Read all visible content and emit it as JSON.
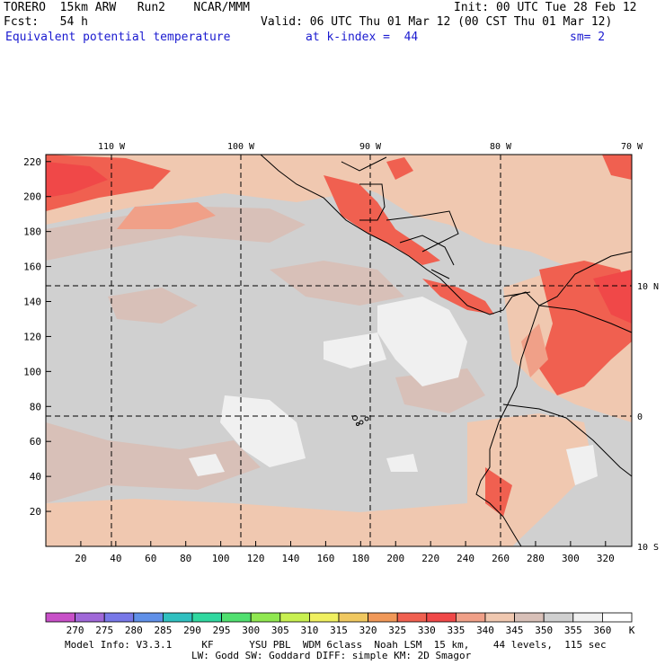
{
  "header": {
    "line1_left": "TORERO  15km ARW   Run2    NCAR/MMM",
    "line1_right": "Init: 00 UTC Tue 28 Feb 12",
    "line2_left": "Fcst:   54 h",
    "line2_right": "Valid: 06 UTC Thu 01 Mar 12 (00 CST Thu 01 Mar 12)",
    "field_name": "Equivalent potential temperature",
    "level": "at k-index =  44",
    "smoothing": "sm= 2"
  },
  "map": {
    "top_lon_labels": [
      "110 W",
      "100 W",
      "90 W",
      "80 W",
      "70 W"
    ],
    "right_lat_labels": [
      "10 N",
      "0",
      "10 S"
    ],
    "y_axis_ticks": [
      "220",
      "200",
      "180",
      "160",
      "140",
      "120",
      "100",
      "80",
      "60",
      "40",
      "20"
    ],
    "x_axis_ticks": [
      "20",
      "40",
      "60",
      "80",
      "100",
      "120",
      "140",
      "160",
      "180",
      "200",
      "220",
      "240",
      "260",
      "280",
      "300",
      "320"
    ]
  },
  "legend": {
    "levels": [
      "270",
      "275",
      "280",
      "285",
      "290",
      "295",
      "300",
      "305",
      "310",
      "315",
      "320",
      "325",
      "330",
      "335",
      "340",
      "345",
      "350",
      "355",
      "360"
    ],
    "unit": "K",
    "colors": [
      "#c850c8",
      "#a068d8",
      "#7878e8",
      "#6090e8",
      "#30c0c0",
      "#30d8a0",
      "#50e070",
      "#90e850",
      "#c8f050",
      "#f0f060",
      "#f0c860",
      "#f09858",
      "#f06050",
      "#f04848",
      "#f0a088",
      "#f0c8b0",
      "#d8c0b8",
      "#d0d0d0",
      "#f0f0f0",
      "#ffffff"
    ]
  },
  "footer": {
    "line1": "Model Info: V3.3.1     KF      YSU PBL  WDM 6class  Noah LSM  15 km,    44 levels,  115 sec",
    "line2": "LW: Godd SW: Goddard DIFF: simple KM: 2D Smagor"
  }
}
